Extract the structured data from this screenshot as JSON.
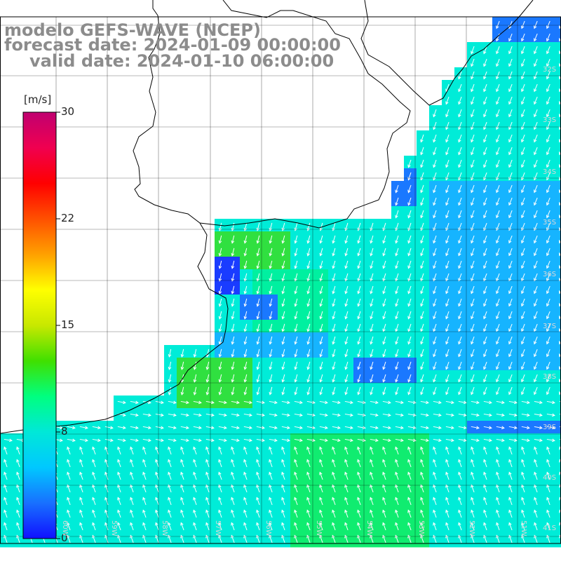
{
  "title": {
    "line1": "modelo GEFS-WAVE (NCEP)",
    "line2": "forecast date: 2024-01-09 00:00:00",
    "line3": "valid date: 2024-01-10 06:00:00"
  },
  "colorbar": {
    "unit": "[m/s]",
    "ticks": [
      "30",
      "22",
      "15",
      "8",
      "0"
    ],
    "colors": [
      "#1010ff",
      "#1870ff",
      "#00c8ff",
      "#00e8d8",
      "#00ff80",
      "#40e000",
      "#c8e800",
      "#ffff00",
      "#ffa000",
      "#ff5000",
      "#ff0000",
      "#f00050",
      "#c00070"
    ]
  },
  "map": {
    "latitude_labels": [
      "32S",
      "33S",
      "34S",
      "35S",
      "36S",
      "37S",
      "38S",
      "39S",
      "40S",
      "41S"
    ],
    "longitude_labels": [
      "60W",
      "59W",
      "58W",
      "57W",
      "56W",
      "55W",
      "54W",
      "53W",
      "52W",
      "51W"
    ],
    "grid_color": "#000000",
    "land_color": "#ffffff",
    "arrow_color": "#ffffff",
    "coast_color": "#000000"
  }
}
